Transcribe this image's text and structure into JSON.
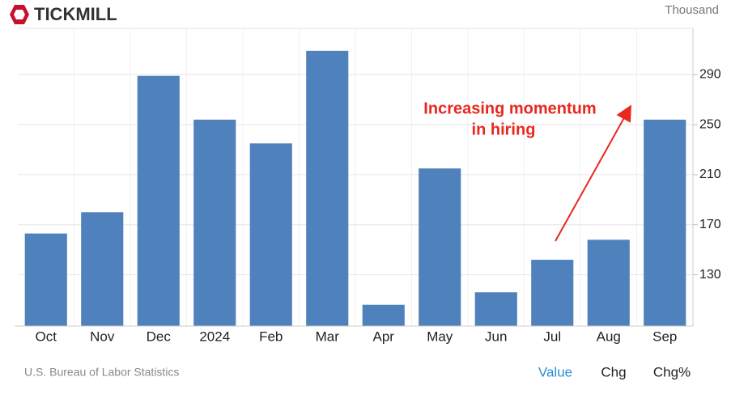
{
  "header": {
    "logo": "TICKMILL"
  },
  "chart_data": {
    "type": "bar",
    "unit": "Thousand",
    "categories": [
      "Oct",
      "Nov",
      "Dec",
      "2024",
      "Feb",
      "Mar",
      "Apr",
      "May",
      "Jun",
      "Jul",
      "Aug",
      "Sep"
    ],
    "values": [
      163,
      180,
      289,
      254,
      235,
      309,
      106,
      215,
      116,
      142,
      158,
      254
    ],
    "color": "#4f81bd",
    "ylim": [
      89,
      327
    ],
    "yticks": [
      130,
      170,
      210,
      250,
      290
    ],
    "grid": true,
    "annotation": [
      "Increasing momentum",
      "in hiring"
    ]
  },
  "footer": {
    "source": "U.S. Bureau of Labor Statistics",
    "buttons": [
      "Value",
      "Chg",
      "Chg%"
    ]
  }
}
